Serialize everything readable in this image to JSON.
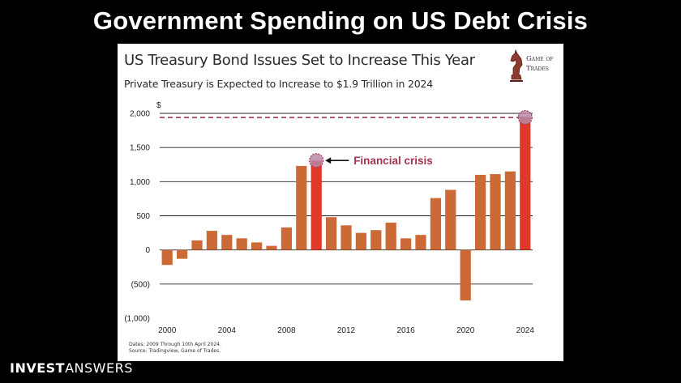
{
  "slide": {
    "title": "Government Spending on US Debt Crisis",
    "brand_strong": "INVEST",
    "brand_light": "ANSWERS"
  },
  "logo": {
    "line1": "Game of",
    "line2": "Trades"
  },
  "colors": {
    "bar": "#cc6a37",
    "bar_highlight": "#e0392b",
    "marker": "#b98aa6",
    "dashed_line": "#9b3a58",
    "annotation": "#a3344f",
    "grid": "#222222"
  },
  "chart_data": {
    "type": "bar",
    "title": "US Treasury Bond Issues Set to Increase This Year",
    "subtitle": "Private Treasury is Expected to Increase to $1.9 Trillion in 2024",
    "y_unit": "$",
    "ylim": [
      -1000,
      2000
    ],
    "y_ticks": [
      {
        "value": 2000,
        "label": "2,000"
      },
      {
        "value": 1500,
        "label": "1,500"
      },
      {
        "value": 1000,
        "label": "1,000"
      },
      {
        "value": 500,
        "label": "500"
      },
      {
        "value": 0,
        "label": "0"
      },
      {
        "value": -500,
        "label": "(500)"
      },
      {
        "value": -1000,
        "label": "(1,000)"
      }
    ],
    "x_ticks": [
      2000,
      2004,
      2008,
      2012,
      2016,
      2020,
      2024
    ],
    "x": [
      2000,
      2001,
      2002,
      2003,
      2004,
      2005,
      2006,
      2007,
      2008,
      2009,
      2010,
      2011,
      2012,
      2013,
      2014,
      2015,
      2016,
      2017,
      2018,
      2019,
      2020,
      2021,
      2022,
      2023,
      2024
    ],
    "values": [
      -220,
      -130,
      140,
      280,
      220,
      170,
      110,
      60,
      330,
      1230,
      1310,
      480,
      360,
      250,
      290,
      400,
      170,
      220,
      760,
      880,
      -740,
      1100,
      1110,
      1150,
      1950
    ],
    "highlighted": [
      2010,
      2024
    ],
    "reference_line": 1940,
    "annotation": {
      "text": "Financial crisis",
      "x": 2010,
      "y": 1310
    },
    "grid": true,
    "notes": [
      "Dates: 2009 Through 10th April 2024.",
      "Source: Tradingview, Game of Trades."
    ]
  }
}
